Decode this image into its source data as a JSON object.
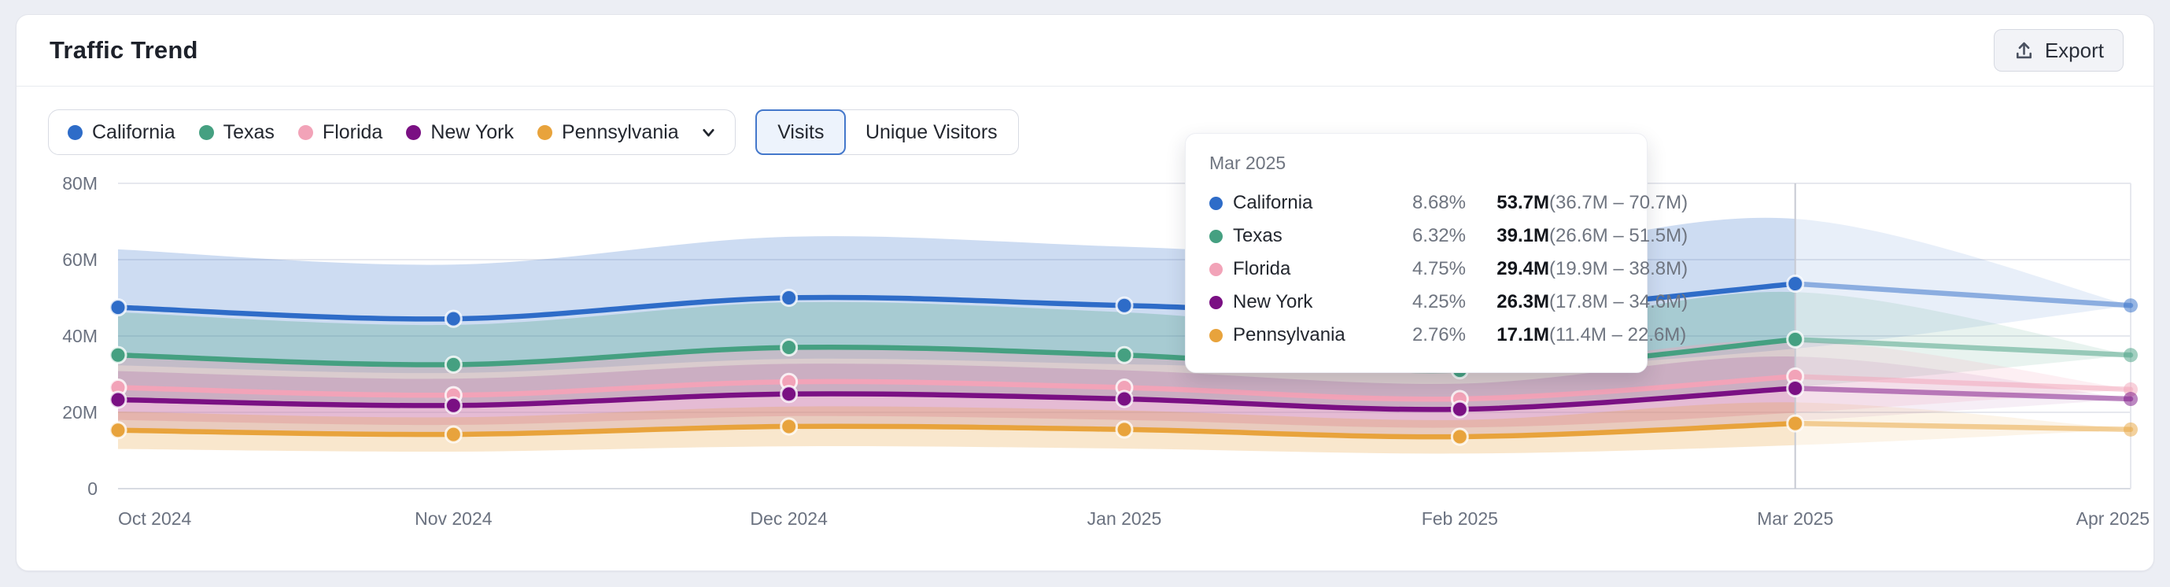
{
  "page": {
    "title": "Traffic Trend"
  },
  "header": {
    "export_label": "Export"
  },
  "controls": {
    "metric_tabs": [
      {
        "label": "Visits",
        "active": true
      },
      {
        "label": "Unique Visitors",
        "active": false
      }
    ]
  },
  "legend": {
    "items": [
      {
        "label": "California",
        "color": "#2E6CC8"
      },
      {
        "label": "Texas",
        "color": "#45A081"
      },
      {
        "label": "Florida",
        "color": "#F2A3B8"
      },
      {
        "label": "New York",
        "color": "#7A1083"
      },
      {
        "label": "Pennsylvania",
        "color": "#E8A33C"
      }
    ]
  },
  "chart_data": {
    "type": "line",
    "title": "Traffic Trend",
    "x": [
      "Oct 2024",
      "Nov 2024",
      "Dec 2024",
      "Jan 2025",
      "Feb 2025",
      "Mar 2025",
      "Apr 2025"
    ],
    "y_ticks": [
      {
        "label": "80M",
        "value": 80
      },
      {
        "label": "60M",
        "value": 60
      },
      {
        "label": "40M",
        "value": 40
      },
      {
        "label": "20M",
        "value": 20
      },
      {
        "label": "0",
        "value": 0
      }
    ],
    "ylim": [
      0,
      80
    ],
    "unit": "M visits",
    "grid": "horizontal",
    "legend_position": "top-left",
    "crosshair_index": 5,
    "forecast_from_index": 5,
    "series": [
      {
        "name": "California",
        "color": "#2E6CC8",
        "band_opacity": 0.24,
        "values": [
          47.5,
          44.5,
          50.0,
          48.0,
          46.0,
          53.7,
          48.0
        ],
        "band_lower": [
          32.3,
          30.3,
          34.0,
          32.6,
          31.3,
          36.7,
          48.0
        ],
        "band_upper": [
          62.7,
          58.7,
          66.0,
          63.4,
          60.7,
          70.7,
          48.0
        ]
      },
      {
        "name": "Texas",
        "color": "#45A081",
        "band_opacity": 0.28,
        "values": [
          35.0,
          32.5,
          37.0,
          35.0,
          31.0,
          39.1,
          35.0
        ],
        "band_lower": [
          23.8,
          22.1,
          25.2,
          23.8,
          21.1,
          26.6,
          35.0
        ],
        "band_upper": [
          46.2,
          42.9,
          48.8,
          46.2,
          40.9,
          51.5,
          35.0
        ]
      },
      {
        "name": "Florida",
        "color": "#F2A3B8",
        "band_opacity": 0.38,
        "values": [
          26.5,
          24.5,
          28.0,
          26.5,
          23.5,
          29.4,
          26.0
        ],
        "band_lower": [
          18.0,
          16.7,
          19.0,
          18.0,
          16.0,
          19.9,
          26.0
        ],
        "band_upper": [
          35.0,
          32.3,
          37.0,
          35.0,
          31.0,
          38.8,
          26.0
        ]
      },
      {
        "name": "New York",
        "color": "#7A1083",
        "band_opacity": 0.16,
        "values": [
          23.3,
          21.8,
          24.8,
          23.5,
          20.8,
          26.3,
          23.5
        ],
        "band_lower": [
          15.8,
          14.8,
          16.9,
          16.0,
          14.1,
          17.8,
          23.5
        ],
        "band_upper": [
          30.8,
          28.8,
          32.7,
          31.0,
          27.5,
          34.6,
          23.5
        ]
      },
      {
        "name": "Pennsylvania",
        "color": "#E8A33C",
        "band_opacity": 0.26,
        "values": [
          15.3,
          14.2,
          16.3,
          15.5,
          13.6,
          17.1,
          15.5
        ],
        "band_lower": [
          10.4,
          9.7,
          11.1,
          10.5,
          9.2,
          11.4,
          15.5
        ],
        "band_upper": [
          20.2,
          18.7,
          21.5,
          20.5,
          18.0,
          22.6,
          15.5
        ]
      }
    ]
  },
  "tooltip": {
    "title": "Mar 2025",
    "rows": [
      {
        "name": "California",
        "share": "8.68%",
        "value": "53.7M",
        "range": "(36.7M – 70.7M)"
      },
      {
        "name": "Texas",
        "share": "6.32%",
        "value": "39.1M",
        "range": "(26.6M – 51.5M)"
      },
      {
        "name": "Florida",
        "share": "4.75%",
        "value": "29.4M",
        "range": "(19.9M – 38.8M)"
      },
      {
        "name": "New York",
        "share": "4.25%",
        "value": "26.3M",
        "range": "(17.8M – 34.6M)"
      },
      {
        "name": "Pennsylvania",
        "share": "2.76%",
        "value": "17.1M",
        "range": "(11.4M – 22.6M)"
      }
    ]
  }
}
